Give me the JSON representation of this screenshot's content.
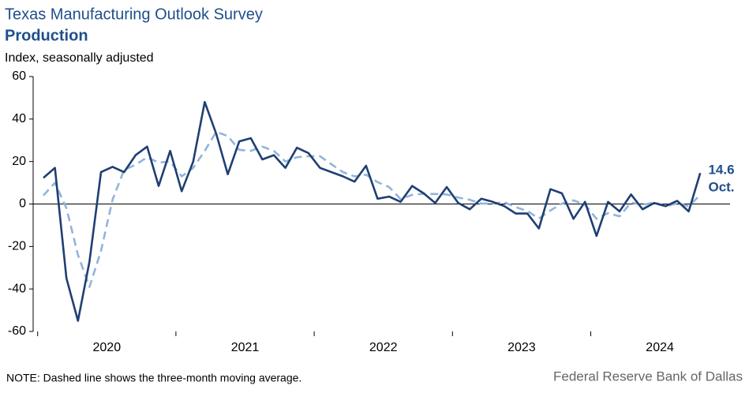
{
  "chart_data": {
    "type": "line",
    "title": "Texas Manufacturing Outlook Survey",
    "subtitle": "Production",
    "y_label": "Index, seasonally adjusted",
    "note": "NOTE: Dashed line shows the three-month  moving average.",
    "source": "Federal Reserve Bank of Dallas",
    "annotation": "Oct.",
    "categories": [
      "2020",
      null,
      null,
      null,
      null,
      null,
      null,
      null,
      null,
      null,
      null,
      null,
      "2021",
      null,
      null,
      null,
      null,
      null,
      null,
      null,
      null,
      null,
      null,
      null,
      "2022",
      null,
      null,
      null,
      null,
      null,
      null,
      null,
      null,
      null,
      null,
      null,
      "2023",
      null,
      null,
      null,
      null,
      null,
      null,
      null,
      null,
      null,
      null,
      null,
      "2024",
      null,
      null,
      null,
      null,
      null,
      null,
      null,
      null,
      null
    ],
    "series": [
      {
        "color": "#1f3f73",
        "dashed": false,
        "values": [
          12.3,
          17,
          -35,
          -55,
          -27,
          15,
          17.5,
          15,
          23,
          27,
          8.5,
          25,
          6,
          20,
          48,
          33,
          14,
          29.5,
          31,
          21,
          23,
          17,
          26.5,
          24,
          17,
          15,
          13,
          10.5,
          18,
          2.5,
          3.5,
          1,
          8.5,
          5,
          0.5,
          8,
          0.5,
          -2.5,
          2.5,
          1,
          -1,
          -4.5,
          -4.5,
          -11.5,
          7,
          5,
          -7,
          1,
          -15,
          1,
          -3.5,
          4.5,
          -2.5,
          0.5,
          -1,
          1.5,
          -3.5,
          14.6
        ]
      },
      {
        "color": "#92b4dc",
        "dashed": true,
        "values": [
          4,
          10,
          -2,
          -24,
          -39,
          -22,
          2,
          16,
          18.5,
          22,
          19.5,
          20,
          13,
          17,
          25,
          34,
          32,
          25.5,
          25,
          27,
          25,
          20,
          22,
          22.5,
          22.5,
          18.7,
          15,
          13,
          13.8,
          10.3,
          8,
          2.3,
          4.3,
          4.8,
          4.7,
          4.5,
          3,
          2,
          0.2,
          0.3,
          0.8,
          -1.5,
          -3.3,
          -6.8,
          -3,
          0.2,
          1.7,
          -0.3,
          -7,
          -4.3,
          -5.8,
          0.7,
          -0.5,
          0.8,
          -1,
          0.3,
          -1,
          4.2
        ]
      }
    ],
    "ylim": [
      -60,
      60
    ],
    "yticks": [
      -60,
      -40,
      -20,
      0,
      20,
      40,
      60
    ]
  }
}
